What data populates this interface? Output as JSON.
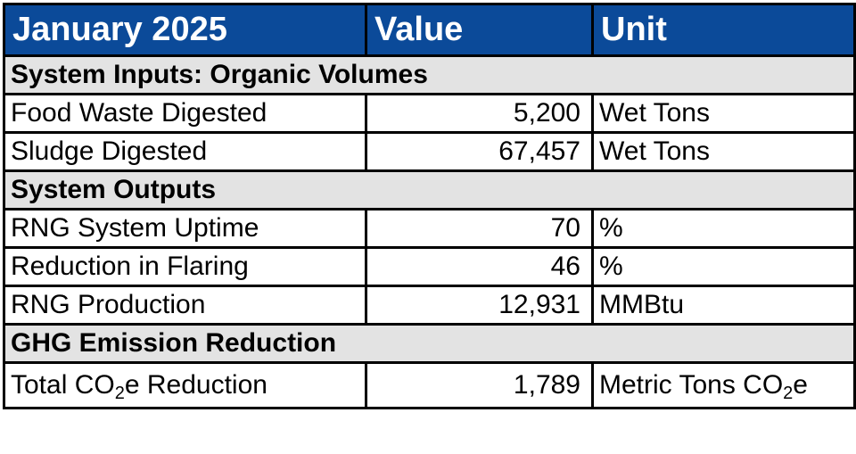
{
  "header": {
    "period": "January 2025",
    "value": "Value",
    "unit": "Unit"
  },
  "sections": [
    {
      "title": "System Inputs: Organic Volumes",
      "rows": [
        {
          "metric": "Food Waste Digested",
          "value": "5,200",
          "unit": "Wet Tons"
        },
        {
          "metric": "Sludge Digested",
          "value": "67,457",
          "unit": "Wet Tons"
        }
      ]
    },
    {
      "title": "System Outputs",
      "rows": [
        {
          "metric": "RNG System Uptime",
          "value": "70",
          "unit": "%"
        },
        {
          "metric": "Reduction in Flaring",
          "value": "46",
          "unit": "%"
        },
        {
          "metric": "RNG Production",
          "value": "12,931",
          "unit": "MMBtu"
        }
      ]
    },
    {
      "title": "GHG Emission Reduction",
      "rows": [
        {
          "metric_pre": "Total CO",
          "metric_sub": "2",
          "metric_post": "e Reduction",
          "value": "1,789",
          "unit_pre": "Metric Tons CO",
          "unit_sub": "2",
          "unit_post": "e"
        }
      ]
    }
  ],
  "colors": {
    "header_bg": "#0b4a99",
    "section_bg": "#e3e3e3",
    "border": "#000000"
  }
}
